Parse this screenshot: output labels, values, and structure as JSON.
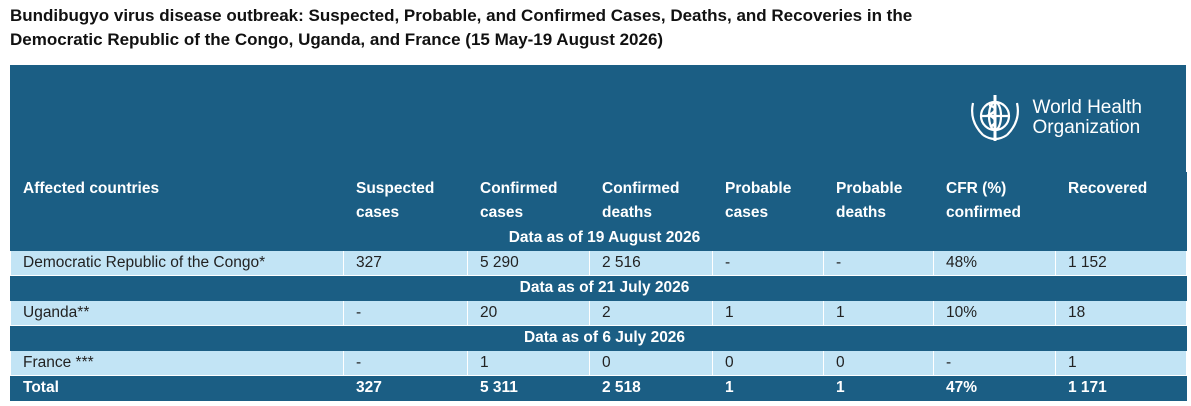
{
  "header": {
    "title": [
      "Bundibugyo virus disease outbreak: Suspected, Probable, and Confirmed Cases, Deaths, and Recoveries in the",
      "Democratic Republic of the Congo, Uganda, and France (15 May-19 August 2026)"
    ]
  },
  "logo": {
    "lines": [
      "World Health",
      "Organization"
    ]
  },
  "table": {
    "columns": [
      [
        "Affected countries"
      ],
      [
        "Suspected",
        "cases"
      ],
      [
        "Confirmed",
        "cases"
      ],
      [
        "Confirmed",
        "deaths"
      ],
      [
        "Probable",
        "cases"
      ],
      [
        "Probable",
        "deaths"
      ],
      [
        "CFR (%)",
        "confirmed"
      ],
      [
        "Recovered"
      ]
    ],
    "sections": [
      {
        "label": "Data as of 19 August 2026",
        "rows": [
          [
            "Democratic Republic of the Congo*",
            "327",
            "5 290",
            "2 516",
            "-",
            "-",
            "48%",
            "1 152"
          ]
        ]
      },
      {
        "label": "Data as of 21 July 2026",
        "rows": [
          [
            "Uganda**",
            "-",
            "20",
            "2",
            "1",
            "1",
            "10%",
            "18"
          ]
        ]
      },
      {
        "label": "Data as of 6 July 2026",
        "rows": [
          [
            "France ***",
            "-",
            "1",
            "0",
            "0",
            "0",
            "-",
            "1"
          ]
        ]
      }
    ],
    "total": [
      "Total",
      "327",
      "5 311",
      "2 518",
      "1",
      "1",
      "47%",
      "1 171"
    ]
  }
}
